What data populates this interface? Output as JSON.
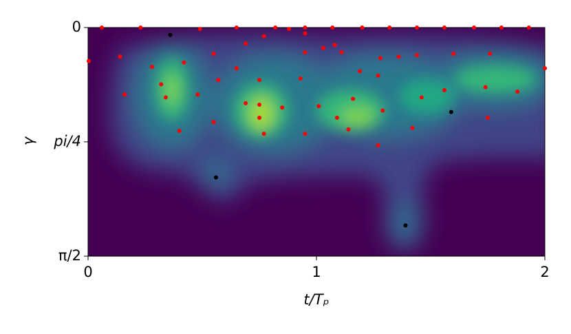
{
  "chart_data": {
    "type": "scatter",
    "xlabel": "t/Tₚ",
    "ylabel": "γ",
    "xlim": [
      0,
      2
    ],
    "xticks": [
      0,
      1,
      2
    ],
    "ylim": [
      0,
      1.571
    ],
    "y_inverted": true,
    "yticks": [
      0,
      {
        "value": 0.785,
        "label": "pi/4"
      },
      {
        "value": 1.571,
        "label": "π/2"
      }
    ],
    "series": [
      {
        "color": "#ff0000",
        "x": [
          0.06,
          0.23,
          0.49,
          0.65,
          0.82,
          0.95,
          1.07,
          1.2,
          1.32,
          1.44,
          1.56,
          1.69,
          1.81,
          1.93,
          0.003,
          0.14,
          0.16,
          0.28,
          0.32,
          0.34,
          0.4,
          0.42,
          0.48,
          0.55,
          0.55,
          0.57,
          0.65,
          0.69,
          0.69,
          0.75,
          0.75,
          0.75,
          0.77,
          0.77,
          0.85,
          0.88,
          0.93,
          0.95,
          0.95,
          0.95,
          1.01,
          1.03,
          1.08,
          1.11,
          1.09,
          1.14,
          1.16,
          1.19,
          1.27,
          1.27,
          1.28,
          1.29,
          1.36,
          1.42,
          1.44,
          1.46,
          1.56,
          1.6,
          1.74,
          1.75,
          1.76,
          1.88,
          2.0
        ],
        "y": [
          0,
          0,
          0.01,
          0,
          0,
          0,
          0,
          0,
          0,
          0,
          0,
          0,
          0,
          0,
          0.23,
          0.2,
          0.46,
          0.27,
          0.39,
          0.48,
          0.71,
          0.24,
          0.46,
          0.18,
          0.65,
          0.36,
          0.28,
          0.11,
          0.52,
          0.36,
          0.53,
          0.62,
          0.73,
          0.06,
          0.55,
          0.01,
          0.35,
          0.04,
          0.17,
          0.73,
          0.54,
          0.14,
          0.12,
          0.17,
          0.62,
          0.7,
          0.49,
          0.3,
          0.81,
          0.33,
          0.21,
          0.57,
          0.2,
          0.69,
          0.19,
          0.48,
          0.43,
          0.18,
          0.41,
          0.62,
          0.18,
          0.44,
          0.28
        ]
      },
      {
        "color": "#000000",
        "x": [
          0.36,
          0.56,
          1.39,
          1.59
        ],
        "y": [
          0.05,
          1.03,
          1.36,
          0.58
        ]
      }
    ]
  }
}
